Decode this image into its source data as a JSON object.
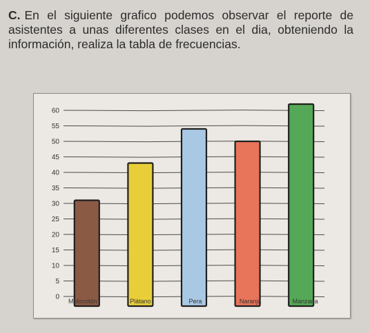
{
  "question": {
    "label": "C.",
    "text": "En el siguiente grafico podemos observar el reporte de asistentes a unas diferentes clases en el dia, obteniendo la información, realiza la tabla de frecuencias."
  },
  "chart_data": {
    "type": "bar",
    "title": "",
    "xlabel": "",
    "ylabel": "",
    "categories": [
      "Melocotón",
      "Plátano",
      "Pera",
      "Naranja",
      "Manzana"
    ],
    "values": [
      31,
      43,
      54,
      50,
      62
    ],
    "colors": [
      "#8b5a45",
      "#e8cf3a",
      "#a9c8e4",
      "#e8745a",
      "#55a857"
    ],
    "ylim": [
      0,
      60
    ],
    "yticks": [
      0,
      5,
      10,
      15,
      20,
      25,
      30,
      35,
      40,
      45,
      50,
      55,
      60
    ],
    "grid": true
  }
}
